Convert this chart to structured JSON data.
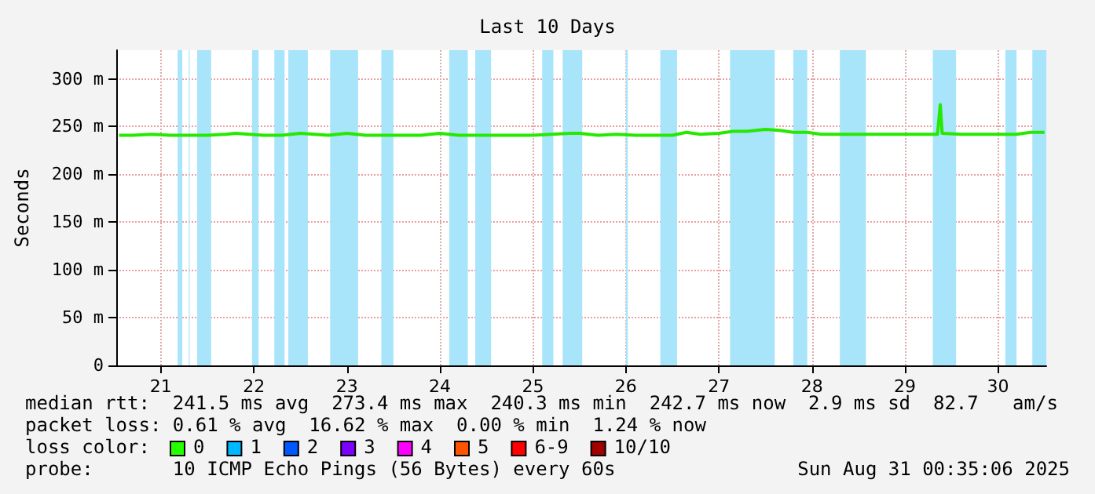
{
  "chart_data": {
    "type": "line",
    "title": "Last 10 Days",
    "ylabel": "Seconds",
    "x": [
      21.05,
      21.2,
      21.4,
      21.6,
      21.8,
      22.0,
      22.2,
      22.3,
      22.45,
      22.6,
      22.8,
      23.0,
      23.15,
      23.3,
      23.5,
      23.7,
      23.9,
      24.1,
      24.3,
      24.5,
      24.7,
      24.9,
      25.1,
      25.3,
      25.5,
      25.7,
      25.9,
      26.0,
      26.2,
      26.4,
      26.6,
      26.8,
      27.0,
      27.15,
      27.3,
      27.5,
      27.65,
      27.8,
      28.0,
      28.15,
      28.3,
      28.45,
      28.6,
      28.8,
      29.0,
      29.2,
      29.4,
      29.6,
      29.85,
      29.88,
      29.9,
      30.1,
      30.3,
      30.5,
      30.7,
      30.85,
      31.0
    ],
    "series": [
      {
        "color": "#26e800",
        "values": [
          241,
          241,
          242,
          241,
          241,
          241,
          242,
          243,
          242,
          241,
          241,
          243,
          242,
          241,
          243,
          241,
          241,
          241,
          241,
          243,
          241,
          241,
          241,
          241,
          241,
          242,
          243,
          243,
          241,
          242,
          241,
          241,
          241,
          244,
          242,
          243,
          245,
          245,
          247,
          246,
          244,
          244,
          242,
          242,
          242,
          242,
          242,
          242,
          242,
          273,
          243,
          242,
          242,
          242,
          242,
          244,
          244
        ]
      }
    ],
    "xlim": [
      21.02,
      31.02
    ],
    "xticks": [
      {
        "value": 21.5,
        "label": "21"
      },
      {
        "value": 22.5,
        "label": "22"
      },
      {
        "value": 23.5,
        "label": "23"
      },
      {
        "value": 24.5,
        "label": "24"
      },
      {
        "value": 25.5,
        "label": "25"
      },
      {
        "value": 26.5,
        "label": "26"
      },
      {
        "value": 27.5,
        "label": "27"
      },
      {
        "value": 28.5,
        "label": "28"
      },
      {
        "value": 29.5,
        "label": "29"
      },
      {
        "value": 30.5,
        "label": "30"
      }
    ],
    "ylim": [
      0,
      330
    ],
    "yticks": [
      0,
      {
        "value": 50,
        "label": "50 m"
      },
      {
        "value": 100,
        "label": "100 m"
      },
      {
        "value": 150,
        "label": "150 m"
      },
      {
        "value": 200,
        "label": "200 m"
      },
      {
        "value": 250,
        "label": "250 m"
      },
      {
        "value": 300,
        "label": "300 m"
      }
    ],
    "grid": true,
    "bands": [
      {
        "axis": "x",
        "from": 21.68,
        "to": 21.73,
        "color": "#a8e4fa"
      },
      {
        "axis": "x",
        "from": 21.8,
        "to": 21.81,
        "color": "#a8e4fa"
      },
      {
        "axis": "x",
        "from": 21.89,
        "to": 22.04,
        "color": "#a8e4fa"
      },
      {
        "axis": "x",
        "from": 22.48,
        "to": 22.55,
        "color": "#a8e4fa"
      },
      {
        "axis": "x",
        "from": 22.72,
        "to": 22.83,
        "color": "#a8e4fa"
      },
      {
        "axis": "x",
        "from": 22.87,
        "to": 23.08,
        "color": "#a8e4fa"
      },
      {
        "axis": "x",
        "from": 23.32,
        "to": 23.62,
        "color": "#a8e4fa"
      },
      {
        "axis": "x",
        "from": 23.87,
        "to": 24.0,
        "color": "#a8e4fa"
      },
      {
        "axis": "x",
        "from": 24.6,
        "to": 24.8,
        "color": "#a8e4fa"
      },
      {
        "axis": "x",
        "from": 24.88,
        "to": 25.05,
        "color": "#a8e4fa"
      },
      {
        "axis": "x",
        "from": 25.6,
        "to": 25.72,
        "color": "#a8e4fa"
      },
      {
        "axis": "x",
        "from": 25.82,
        "to": 26.03,
        "color": "#a8e4fa"
      },
      {
        "axis": "x",
        "from": 26.5,
        "to": 26.52,
        "color": "#a8e4fa"
      },
      {
        "axis": "x",
        "from": 26.87,
        "to": 27.05,
        "color": "#a8e4fa"
      },
      {
        "axis": "x",
        "from": 27.62,
        "to": 28.1,
        "color": "#a8e4fa"
      },
      {
        "axis": "x",
        "from": 28.3,
        "to": 28.45,
        "color": "#a8e4fa"
      },
      {
        "axis": "x",
        "from": 28.8,
        "to": 29.08,
        "color": "#a8e4fa"
      },
      {
        "axis": "x",
        "from": 29.8,
        "to": 30.05,
        "color": "#a8e4fa"
      },
      {
        "axis": "x",
        "from": 30.58,
        "to": 30.7,
        "color": "#a8e4fa"
      },
      {
        "axis": "x",
        "from": 30.87,
        "to": 31.02,
        "color": "#a8e4fa"
      }
    ],
    "annotations": [
      "median rtt:  241.5 ms avg  273.4 ms max  240.3 ms min  242.7 ms now  2.9 ms sd  82.7   am/s",
      "packet loss: 0.61 % avg  16.62 % max  0.00 % min  1.24 % now",
      "loss color:",
      "0",
      "1",
      "2",
      "3",
      "4",
      "5",
      "6-9",
      "10/10",
      "probe:       10 ICMP Echo Pings (56 Bytes) every 60s",
      "Sun Aug 31 00:35:06 2025"
    ]
  }
}
